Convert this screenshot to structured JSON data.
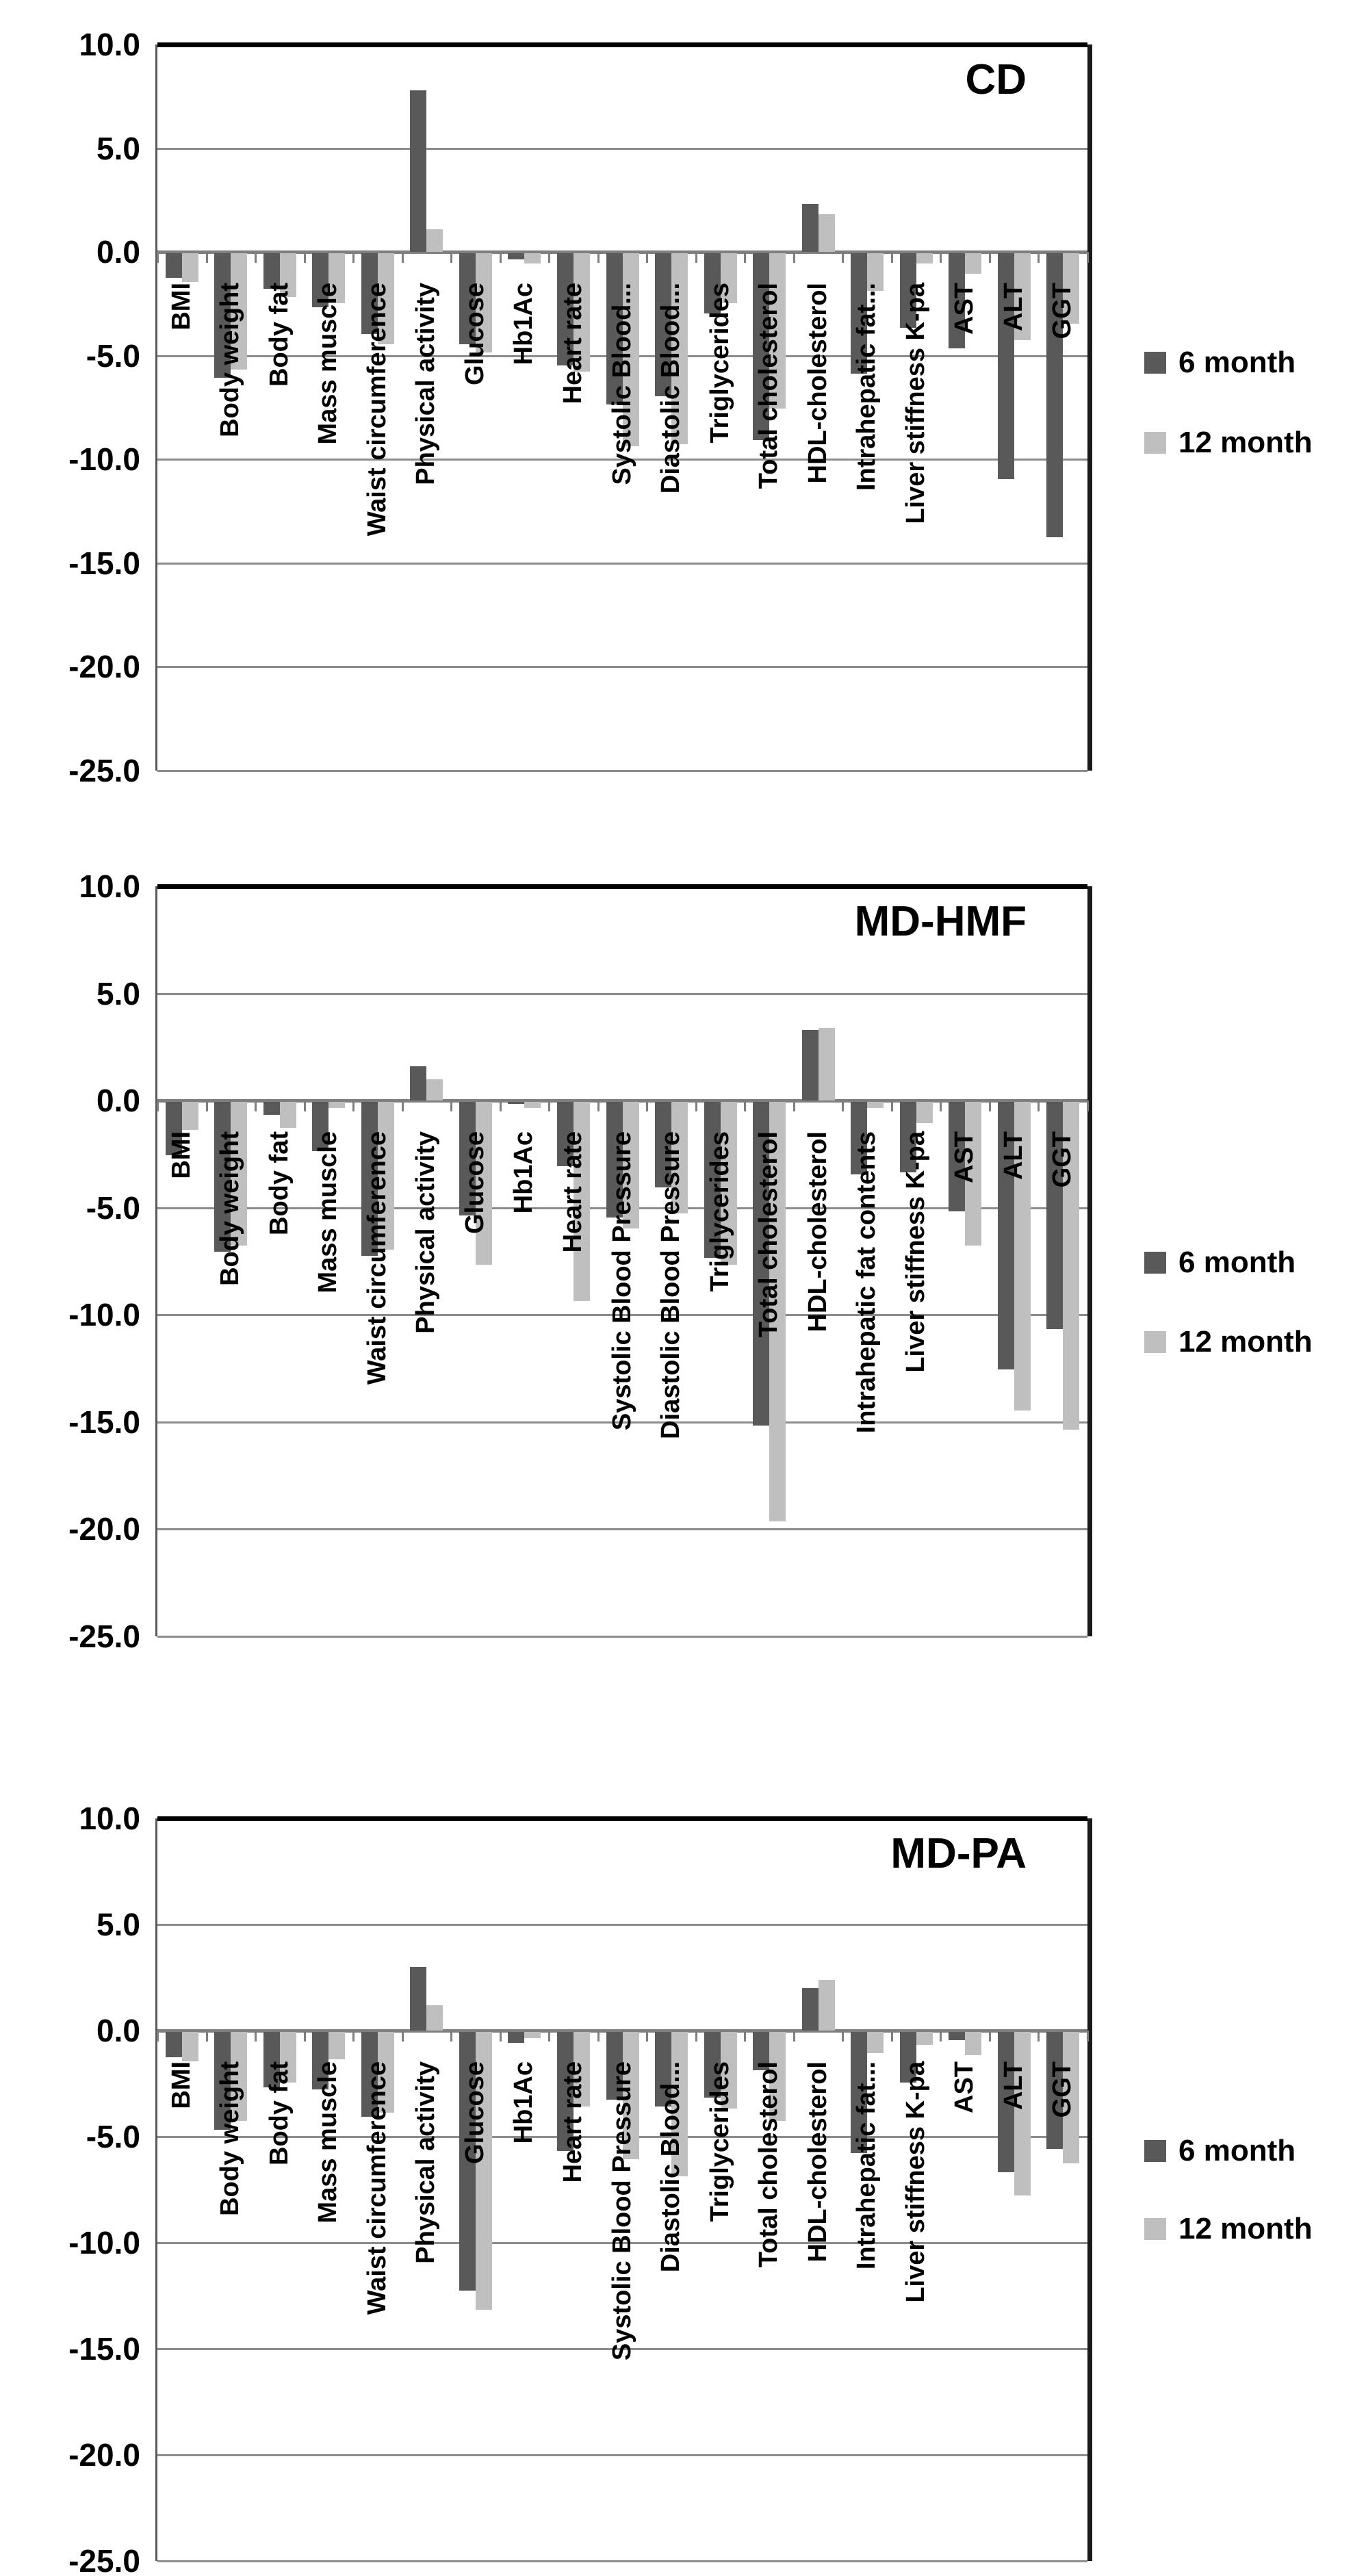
{
  "colors": {
    "series_6_month": "#595959",
    "series_12_month": "#bfbfbf",
    "gridline": "#8c8c8c",
    "axis_text": "#000000",
    "background": "#ffffff"
  },
  "chart_data": [
    {
      "type": "bar",
      "title": "CD",
      "grid": true,
      "legend_position": "right",
      "ylim": [
        -25,
        10
      ],
      "yticks": [
        10,
        5,
        0,
        -5,
        -10,
        -15,
        -20,
        -25
      ],
      "ytick_labels": [
        "10.0",
        "5.0",
        "0.0",
        "-5.0",
        "-10.0",
        "-15.0",
        "-20.0",
        "-25.0"
      ],
      "categories": [
        "BMI",
        "Body weight",
        "Body fat",
        "Mass muscle",
        "Waist circumference",
        "Physical activity",
        "Glucose",
        "Hb1Ac",
        "Heart rate",
        "Systolic Blood...",
        "Diastolic Blood...",
        "Triglycerides",
        "Total cholesterol",
        "HDL-cholesterol",
        "Intrahepatic fat...",
        "Liver stiffness K-pa",
        "AST",
        "ALT",
        "GGT"
      ],
      "series": [
        {
          "name": "6 month",
          "values": [
            -1.2,
            -6.0,
            -1.7,
            -2.6,
            -3.9,
            7.8,
            -4.4,
            -0.3,
            -5.4,
            -7.3,
            -6.9,
            -2.9,
            -9.0,
            2.3,
            -5.8,
            -3.6,
            -4.6,
            -10.9,
            -13.7
          ]
        },
        {
          "name": "12 month",
          "values": [
            -1.4,
            -5.6,
            -2.1,
            -2.4,
            -4.4,
            1.1,
            -4.8,
            -0.5,
            -5.7,
            -9.3,
            -9.2,
            -2.4,
            -7.5,
            1.8,
            -1.8,
            -0.5,
            -1.0,
            -4.2,
            -3.4
          ]
        }
      ]
    },
    {
      "type": "bar",
      "title": "MD-HMF",
      "grid": true,
      "legend_position": "right",
      "ylim": [
        -25,
        10
      ],
      "yticks": [
        10,
        5,
        0,
        -5,
        -10,
        -15,
        -20,
        -25
      ],
      "ytick_labels": [
        "10.0",
        "5.0",
        "0.0",
        "-5.0",
        "-10.0",
        "-15.0",
        "-20.0",
        "-25.0"
      ],
      "categories": [
        "BMI",
        "Body weight",
        "Body fat",
        "Mass muscle",
        "Waist circumference",
        "Physical activity",
        "Glucose",
        "Hb1Ac",
        "Heart rate",
        "Systolic Blood Pressure",
        "Diastolic Blood Pressure",
        "Triglycerides",
        "Total cholesterol",
        "HDL-cholesterol",
        "Intrahepatic fat contents",
        "Liver stiffness K-pa",
        "AST",
        "ALT",
        "GGT"
      ],
      "series": [
        {
          "name": "6 month",
          "values": [
            -2.5,
            -7.0,
            -0.6,
            -2.3,
            -7.2,
            1.6,
            -5.3,
            -0.1,
            -3.0,
            -5.4,
            -4.0,
            -7.3,
            -15.1,
            3.3,
            -3.4,
            -3.3,
            -5.1,
            -12.5,
            -10.6
          ]
        },
        {
          "name": "12 month",
          "values": [
            -1.3,
            -6.7,
            -1.2,
            -0.3,
            -6.9,
            1.0,
            -7.6,
            -0.3,
            -9.3,
            -5.9,
            -5.2,
            -7.6,
            -19.6,
            3.4,
            -0.3,
            -1.0,
            -6.7,
            -14.4,
            -15.3
          ]
        }
      ]
    },
    {
      "type": "bar",
      "title": "MD-PA",
      "grid": true,
      "legend_position": "right",
      "ylim": [
        -25,
        10
      ],
      "yticks": [
        10,
        5,
        0,
        -5,
        -10,
        -15,
        -20,
        -25
      ],
      "ytick_labels": [
        "10.0",
        "5.0",
        "0.0",
        "-5.0",
        "-10.0",
        "-15.0",
        "-20.0",
        "-25.0"
      ],
      "categories": [
        "BMI",
        "Body weight",
        "Body fat",
        "Mass muscle",
        "Waist circumference",
        "Physical activity",
        "Glucose",
        "Hb1Ac",
        "Heart rate",
        "Systolic Blood Pressure",
        "Diastolic Blood...",
        "Triglycerides",
        "Total cholesterol",
        "HDL-cholesterol",
        "Intrahepatic fat...",
        "Liver stiffness K-pa",
        "AST",
        "ALT",
        "GGT"
      ],
      "series": [
        {
          "name": "6 month",
          "values": [
            -1.2,
            -4.6,
            -2.6,
            -2.7,
            -4.0,
            3.0,
            -12.2,
            -0.5,
            -5.6,
            -3.2,
            -3.5,
            -3.1,
            -1.8,
            2.0,
            -5.7,
            -2.4,
            -0.4,
            -6.6,
            -5.5
          ]
        },
        {
          "name": "12 month",
          "values": [
            -1.4,
            -4.2,
            -2.4,
            -1.3,
            -3.8,
            1.2,
            -13.1,
            -0.3,
            -3.5,
            -6.0,
            -6.8,
            -3.6,
            -4.2,
            2.4,
            -1.0,
            -0.6,
            -1.1,
            -7.7,
            -6.2
          ]
        }
      ]
    }
  ]
}
